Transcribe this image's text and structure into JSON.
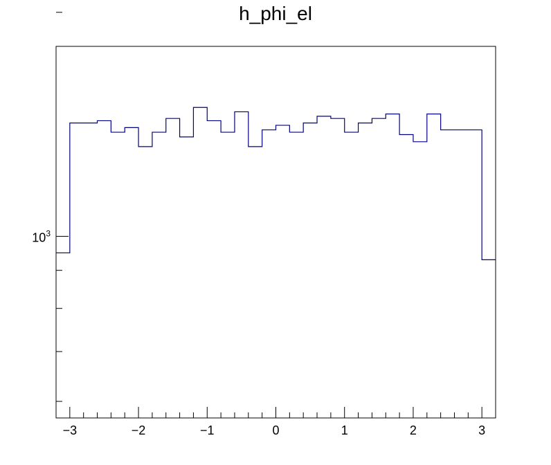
{
  "chart_data": {
    "type": "histogram",
    "title": "h_phi_el",
    "xlim": [
      -3.2,
      3.2
    ],
    "ylim": [
      570,
      1800
    ],
    "yscale": "log",
    "grid": false,
    "line_color": "#000080",
    "bin_width": 0.2,
    "bin_edges_start": -3.2,
    "values": [
      950,
      1420,
      1420,
      1430,
      1380,
      1400,
      1320,
      1380,
      1440,
      1360,
      1490,
      1430,
      1380,
      1470,
      1320,
      1390,
      1410,
      1380,
      1420,
      1450,
      1440,
      1380,
      1420,
      1440,
      1460,
      1370,
      1340,
      1460,
      1390,
      1390,
      1390,
      930
    ],
    "x_ticks": [
      -3,
      -2,
      -1,
      0,
      1,
      2,
      3
    ],
    "x_tick_labels": [
      "−3",
      "−2",
      "−1",
      "0",
      "1",
      "2",
      "3"
    ],
    "y_major_tick": 1000,
    "y_minor_ticks": [
      600,
      700,
      800,
      900,
      2000
    ],
    "y_tick_label_base": "10",
    "y_tick_label_exp": "3"
  }
}
